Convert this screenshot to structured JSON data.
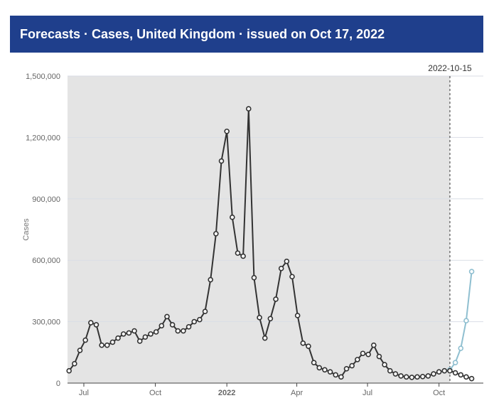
{
  "header": {
    "title": "Forecasts · Cases, United Kingdom  · issued on Oct 17, 2022"
  },
  "colors": {
    "header_bg": "#1f3f8c",
    "observed": "#333333",
    "forecast": "#8fbfd0",
    "shade": "#e4e4e4"
  },
  "chart_data": {
    "type": "line",
    "title": "",
    "xlabel": "",
    "ylabel": "Cases",
    "ylim": [
      0,
      1500000
    ],
    "yticks": [
      {
        "value": 0,
        "label": "0"
      },
      {
        "value": 300000,
        "label": "300,000"
      },
      {
        "value": 600000,
        "label": "600,000"
      },
      {
        "value": 900000,
        "label": "900,000"
      },
      {
        "value": 1200000,
        "label": "1,200,000"
      },
      {
        "value": 1500000,
        "label": "1,500,000"
      }
    ],
    "xticks": [
      {
        "date": "2021-07-01",
        "label": "Jul",
        "bold": false
      },
      {
        "date": "2021-10-01",
        "label": "Oct",
        "bold": false
      },
      {
        "date": "2022-01-01",
        "label": "2022",
        "bold": true
      },
      {
        "date": "2022-04-01",
        "label": "Apr",
        "bold": false
      },
      {
        "date": "2022-07-01",
        "label": "Jul",
        "bold": false
      },
      {
        "date": "2022-10-01",
        "label": "Oct",
        "bold": false
      }
    ],
    "xrange": [
      "2021-06-10",
      "2022-11-27"
    ],
    "forecast_date_label": "2022-10-15",
    "forecast_date": "2022-10-15",
    "grid": true,
    "series": [
      {
        "role": "observed",
        "points": [
          [
            "2021-06-12",
            60000
          ],
          [
            "2021-06-19",
            95000
          ],
          [
            "2021-06-26",
            160000
          ],
          [
            "2021-07-03",
            210000
          ],
          [
            "2021-07-10",
            295000
          ],
          [
            "2021-07-17",
            285000
          ],
          [
            "2021-07-24",
            185000
          ],
          [
            "2021-07-31",
            185000
          ],
          [
            "2021-08-07",
            200000
          ],
          [
            "2021-08-14",
            220000
          ],
          [
            "2021-08-21",
            240000
          ],
          [
            "2021-08-28",
            245000
          ],
          [
            "2021-09-04",
            255000
          ],
          [
            "2021-09-11",
            205000
          ],
          [
            "2021-09-18",
            225000
          ],
          [
            "2021-09-25",
            240000
          ],
          [
            "2021-10-02",
            250000
          ],
          [
            "2021-10-09",
            280000
          ],
          [
            "2021-10-16",
            325000
          ],
          [
            "2021-10-23",
            285000
          ],
          [
            "2021-10-30",
            255000
          ],
          [
            "2021-11-06",
            255000
          ],
          [
            "2021-11-13",
            275000
          ],
          [
            "2021-11-20",
            300000
          ],
          [
            "2021-11-27",
            310000
          ],
          [
            "2021-12-04",
            350000
          ],
          [
            "2021-12-11",
            505000
          ],
          [
            "2021-12-18",
            730000
          ],
          [
            "2021-12-25",
            1085000
          ],
          [
            "2022-01-01",
            1230000
          ],
          [
            "2022-01-08",
            810000
          ],
          [
            "2022-01-15",
            635000
          ],
          [
            "2022-01-22",
            620000
          ],
          [
            "2022-01-29",
            1340000
          ],
          [
            "2022-02-05",
            515000
          ],
          [
            "2022-02-12",
            320000
          ],
          [
            "2022-02-19",
            220000
          ],
          [
            "2022-02-26",
            315000
          ],
          [
            "2022-03-05",
            410000
          ],
          [
            "2022-03-12",
            560000
          ],
          [
            "2022-03-19",
            595000
          ],
          [
            "2022-03-26",
            520000
          ],
          [
            "2022-04-02",
            330000
          ],
          [
            "2022-04-09",
            195000
          ],
          [
            "2022-04-16",
            180000
          ],
          [
            "2022-04-23",
            100000
          ],
          [
            "2022-04-30",
            75000
          ],
          [
            "2022-05-07",
            65000
          ],
          [
            "2022-05-14",
            55000
          ],
          [
            "2022-05-21",
            40000
          ],
          [
            "2022-05-28",
            30000
          ],
          [
            "2022-06-04",
            70000
          ],
          [
            "2022-06-11",
            85000
          ],
          [
            "2022-06-18",
            115000
          ],
          [
            "2022-06-25",
            145000
          ],
          [
            "2022-07-02",
            140000
          ],
          [
            "2022-07-09",
            185000
          ],
          [
            "2022-07-16",
            130000
          ],
          [
            "2022-07-23",
            90000
          ],
          [
            "2022-07-30",
            60000
          ],
          [
            "2022-08-06",
            45000
          ],
          [
            "2022-08-13",
            35000
          ],
          [
            "2022-08-20",
            30000
          ],
          [
            "2022-08-27",
            28000
          ],
          [
            "2022-09-03",
            30000
          ],
          [
            "2022-09-10",
            32000
          ],
          [
            "2022-09-17",
            35000
          ],
          [
            "2022-09-24",
            45000
          ],
          [
            "2022-10-01",
            55000
          ],
          [
            "2022-10-08",
            60000
          ],
          [
            "2022-10-15",
            60000
          ],
          [
            "2022-10-22",
            50000
          ],
          [
            "2022-10-29",
            40000
          ],
          [
            "2022-11-05",
            30000
          ],
          [
            "2022-11-12",
            22000
          ]
        ]
      },
      {
        "role": "forecast",
        "points": [
          [
            "2022-10-08",
            60000
          ],
          [
            "2022-10-15",
            65000
          ],
          [
            "2022-10-22",
            100000
          ],
          [
            "2022-10-29",
            170000
          ],
          [
            "2022-11-05",
            305000
          ],
          [
            "2022-11-12",
            545000
          ]
        ]
      }
    ]
  }
}
